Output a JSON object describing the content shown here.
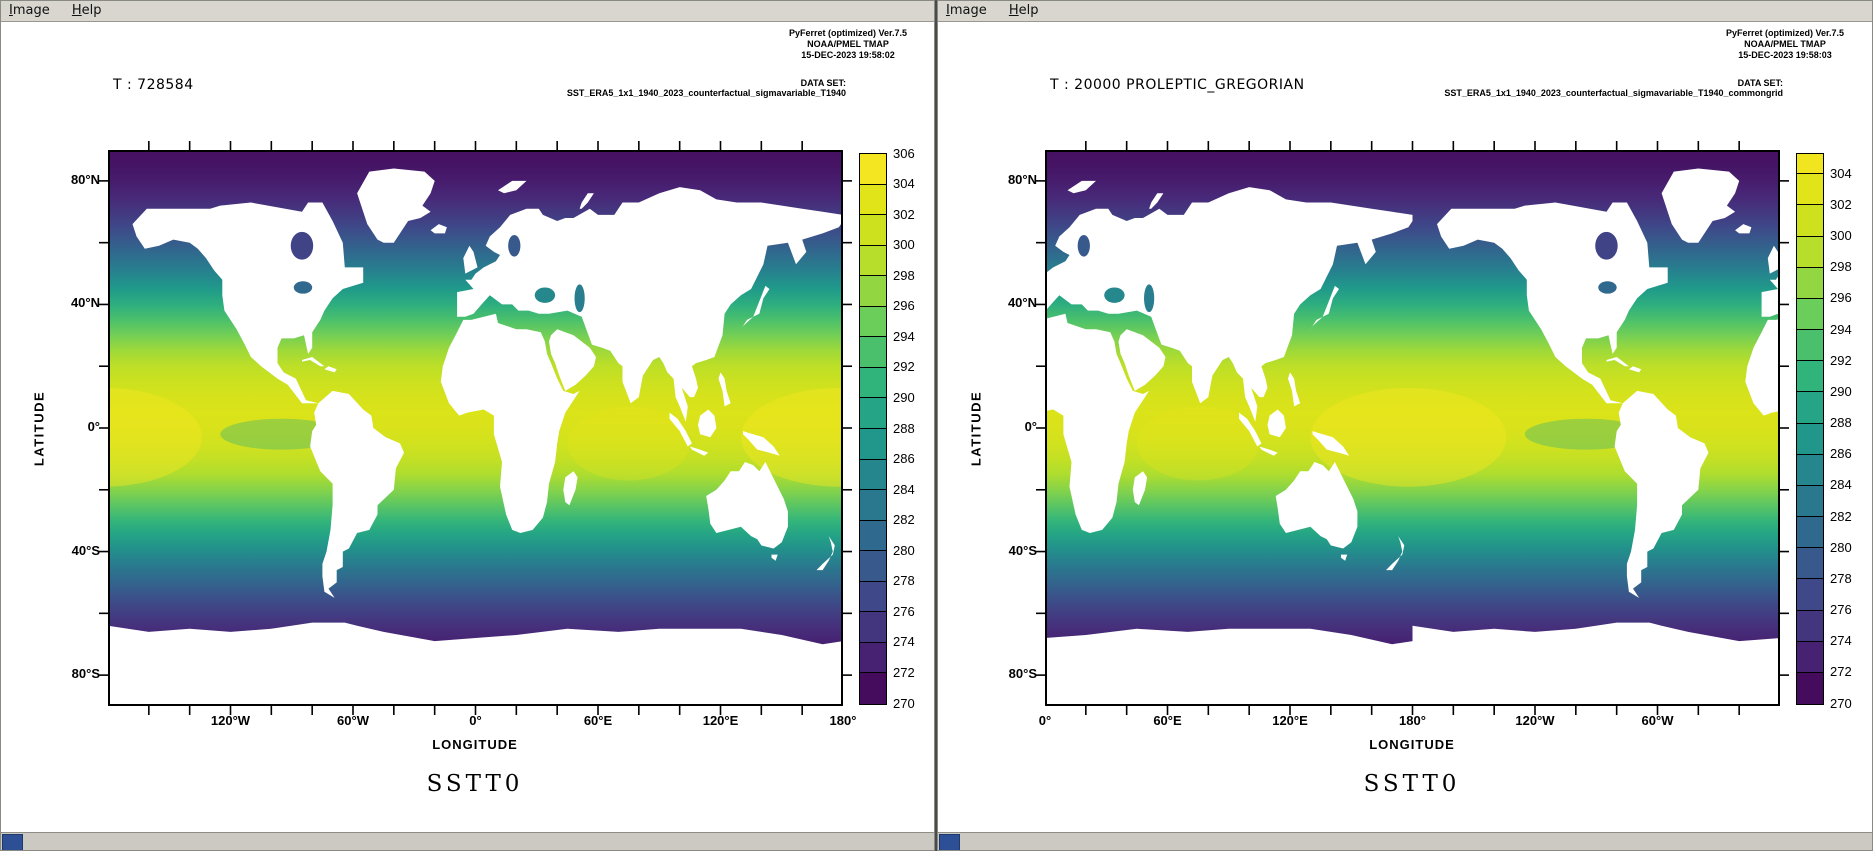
{
  "app": {
    "menu": [
      "Image",
      "Help"
    ]
  },
  "ui_colors": {
    "menubar_bg": "#d9d6d0",
    "canvas_bg": "#ffffff",
    "scrollbar_thumb": "#2d4f96",
    "colormap_low": "#440154",
    "colormap_high": "#fde725",
    "land_color": "#ffffff"
  },
  "windows": [
    {
      "plot_title": "T : 728584",
      "credit": [
        "PyFerret (optimized) Ver.7.5",
        "NOAA/PMEL TMAP",
        "15-DEC-2023 19:58:02"
      ],
      "dataset_label": "DATA SET:",
      "dataset_name": "SST_ERA5_1x1_1940_2023_counterfactual_sigmavariable_T1940",
      "bottom_title": "SSTT0",
      "axis": {
        "x_title": "LONGITUDE",
        "y_title": "LATITUDE",
        "lon_start": -180,
        "lon_end": 180,
        "x_labels": [
          {
            "lon": -120,
            "text": "120°W"
          },
          {
            "lon": -60,
            "text": "60°W"
          },
          {
            "lon": 0,
            "text": "0°"
          },
          {
            "lon": 60,
            "text": "60°E"
          },
          {
            "lon": 120,
            "text": "120°E"
          },
          {
            "lon": 180,
            "text": "180°"
          }
        ],
        "y_labels": [
          {
            "lat": 80,
            "text": "80°N"
          },
          {
            "lat": 40,
            "text": "40°N"
          },
          {
            "lat": 0,
            "text": "0°"
          },
          {
            "lat": -40,
            "text": "40°S"
          },
          {
            "lat": -80,
            "text": "80°S"
          }
        ]
      },
      "colorbar": {
        "value_min": 270,
        "value_max": 306,
        "tick_labels": [
          306,
          304,
          302,
          300,
          298,
          296,
          294,
          292,
          290,
          288,
          286,
          284,
          282,
          280,
          278,
          276,
          274,
          272,
          270
        ]
      }
    },
    {
      "plot_title": "T : 20000 PROLEPTIC_GREGORIAN",
      "credit": [
        "PyFerret (optimized) Ver.7.5",
        "NOAA/PMEL TMAP",
        "15-DEC-2023 19:58:03"
      ],
      "dataset_label": "DATA SET:",
      "dataset_name": "SST_ERA5_1x1_1940_2023_counterfactual_sigmavariable_T1940_commongrid",
      "bottom_title": "SSTT0",
      "axis": {
        "x_title": "LONGITUDE",
        "y_title": "LATITUDE",
        "lon_start": 0,
        "lon_end": 360,
        "x_labels": [
          {
            "lon": 0,
            "text": "0°"
          },
          {
            "lon": 60,
            "text": "60°E"
          },
          {
            "lon": 120,
            "text": "120°E"
          },
          {
            "lon": 180,
            "text": "180°"
          },
          {
            "lon": 240,
            "text": "120°W"
          },
          {
            "lon": 300,
            "text": "60°W"
          }
        ],
        "y_labels": [
          {
            "lat": 80,
            "text": "80°N"
          },
          {
            "lat": 40,
            "text": "40°N"
          },
          {
            "lat": 0,
            "text": "0°"
          },
          {
            "lat": -40,
            "text": "40°S"
          },
          {
            "lat": -80,
            "text": "80°S"
          }
        ]
      },
      "colorbar": {
        "value_min": 270,
        "value_max": 305.3,
        "tick_labels": [
          304,
          302,
          300,
          298,
          296,
          294,
          292,
          290,
          288,
          286,
          284,
          282,
          280,
          278,
          276,
          274,
          272,
          270
        ]
      }
    }
  ],
  "chart_data": [
    {
      "type": "heatmap",
      "title": "SSTT0",
      "time_label": "T : 728584",
      "xlabel": "LONGITUDE",
      "ylabel": "LATITUDE",
      "x_range_deg": [
        -180,
        180
      ],
      "y_range_deg": [
        -90,
        90
      ],
      "x_ticks": [
        "120°W",
        "60°W",
        "0°",
        "60°E",
        "120°E",
        "180°"
      ],
      "y_ticks": [
        "80°N",
        "40°N",
        "0°",
        "40°S",
        "80°S"
      ],
      "colormap": "viridis",
      "colorbar_ticks": [
        306,
        304,
        302,
        300,
        298,
        296,
        294,
        292,
        290,
        288,
        286,
        284,
        282,
        280,
        278,
        276,
        274,
        272,
        270
      ],
      "land_color": "#ffffff",
      "field_summary": "Sea surface temperature: ~270-272 near poles, ~284-290 at mid-latitudes, peak ~302-306 in tropical band; land/ice masked white"
    },
    {
      "type": "heatmap",
      "title": "SSTT0",
      "time_label": "T : 20000 PROLEPTIC_GREGORIAN",
      "xlabel": "LONGITUDE",
      "ylabel": "LATITUDE",
      "x_range_deg": [
        0,
        360
      ],
      "y_range_deg": [
        -90,
        90
      ],
      "x_ticks": [
        "0°",
        "60°E",
        "120°E",
        "180°",
        "120°W",
        "60°W"
      ],
      "y_ticks": [
        "80°N",
        "40°N",
        "0°",
        "40°S",
        "80°S"
      ],
      "colormap": "viridis",
      "colorbar_ticks": [
        304,
        302,
        300,
        298,
        296,
        294,
        292,
        290,
        288,
        286,
        284,
        282,
        280,
        278,
        276,
        274,
        272,
        270
      ],
      "land_color": "#ffffff",
      "field_summary": "Same SST field on common grid, longitudes 0-360; brightest yellows (~302-304) over the equatorial west/central Pacific"
    }
  ]
}
